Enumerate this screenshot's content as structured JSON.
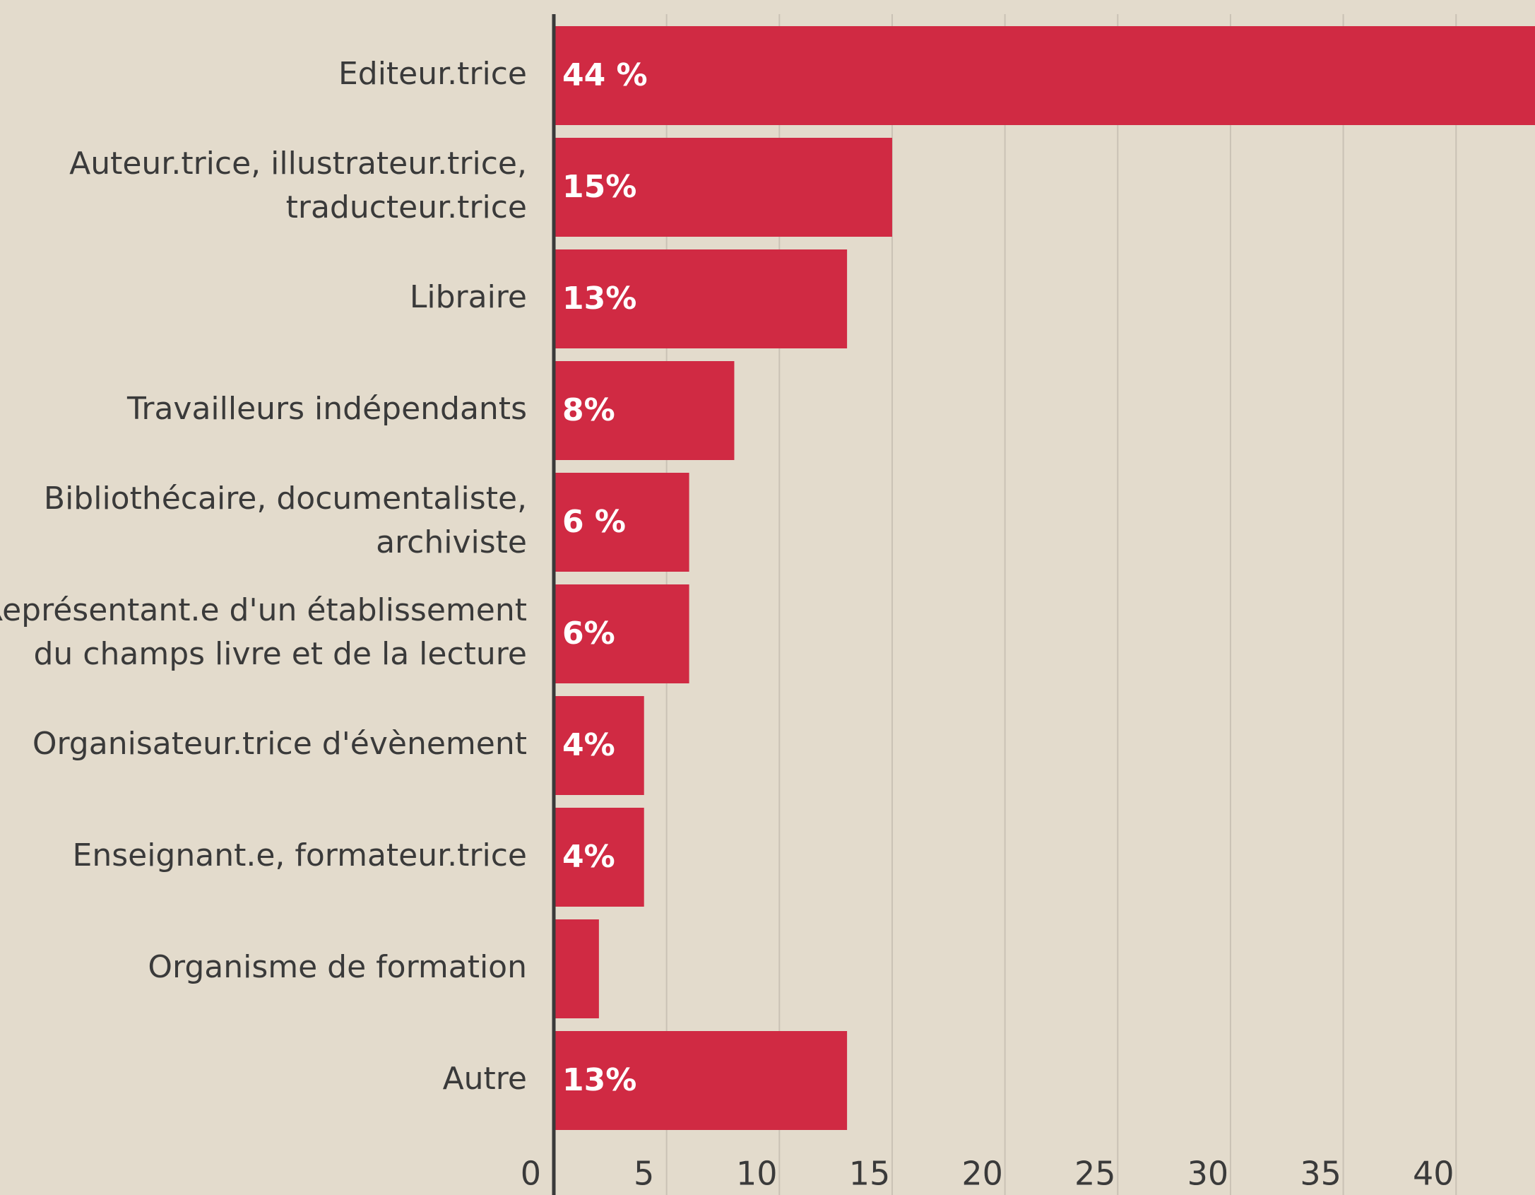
{
  "chart_data": {
    "type": "barh",
    "categories": [
      "Editeur.trice",
      "Auteur.trice, illustrateur.trice,\ntraducteur.trice",
      "Libraire",
      "Travailleurs indépendants",
      "Bibliothécaire, documentaliste,\narchiviste",
      "Représentant.e d'un établissement\ndu champs livre et de la lecture",
      "Organisateur.trice d'évènement",
      "Enseignant.e, formateur.trice",
      "Organisme de formation",
      "Autre"
    ],
    "values": [
      44,
      15,
      13,
      8,
      6,
      6,
      4,
      4,
      2,
      13
    ],
    "value_labels": [
      "44 %",
      "15%",
      "13%",
      "8%",
      "6 %",
      "6%",
      "4%",
      "4%",
      null,
      "13%"
    ],
    "color": "#d02a43",
    "xlim": [
      0,
      43.5
    ],
    "xticks": [
      0,
      5,
      10,
      15,
      20,
      25,
      30,
      35,
      40
    ],
    "grid": true
  }
}
